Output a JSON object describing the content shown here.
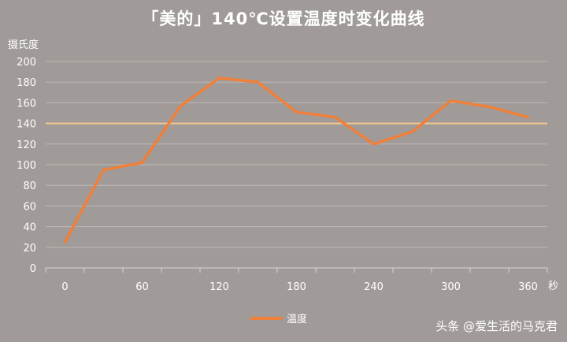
{
  "chart_data": {
    "type": "line",
    "title": "「美的」140℃设置温度时变化曲线",
    "ylabel": "摄氏度",
    "xunit": "秒",
    "x": [
      0,
      30,
      60,
      90,
      120,
      150,
      180,
      210,
      240,
      270,
      300,
      330,
      360
    ],
    "x_tick_labels": [
      "0",
      "60",
      "120",
      "180",
      "240",
      "300",
      "360"
    ],
    "x_ticks": [
      0,
      60,
      120,
      180,
      240,
      300,
      360
    ],
    "y_ticks": [
      0,
      20,
      40,
      60,
      80,
      100,
      120,
      140,
      160,
      180,
      200
    ],
    "ylim": [
      0,
      200
    ],
    "xlim": [
      -15,
      375
    ],
    "grid": true,
    "reference_line": {
      "value": 140,
      "color": "#f7c98c"
    },
    "series": [
      {
        "name": "温度",
        "color": "#f07f3a",
        "values": [
          25,
          95,
          102,
          157,
          184,
          180,
          151,
          146,
          120,
          132,
          162,
          156,
          146
        ]
      }
    ],
    "legend_position": "bottom"
  },
  "watermark": "头条 @爱生活的马克君"
}
